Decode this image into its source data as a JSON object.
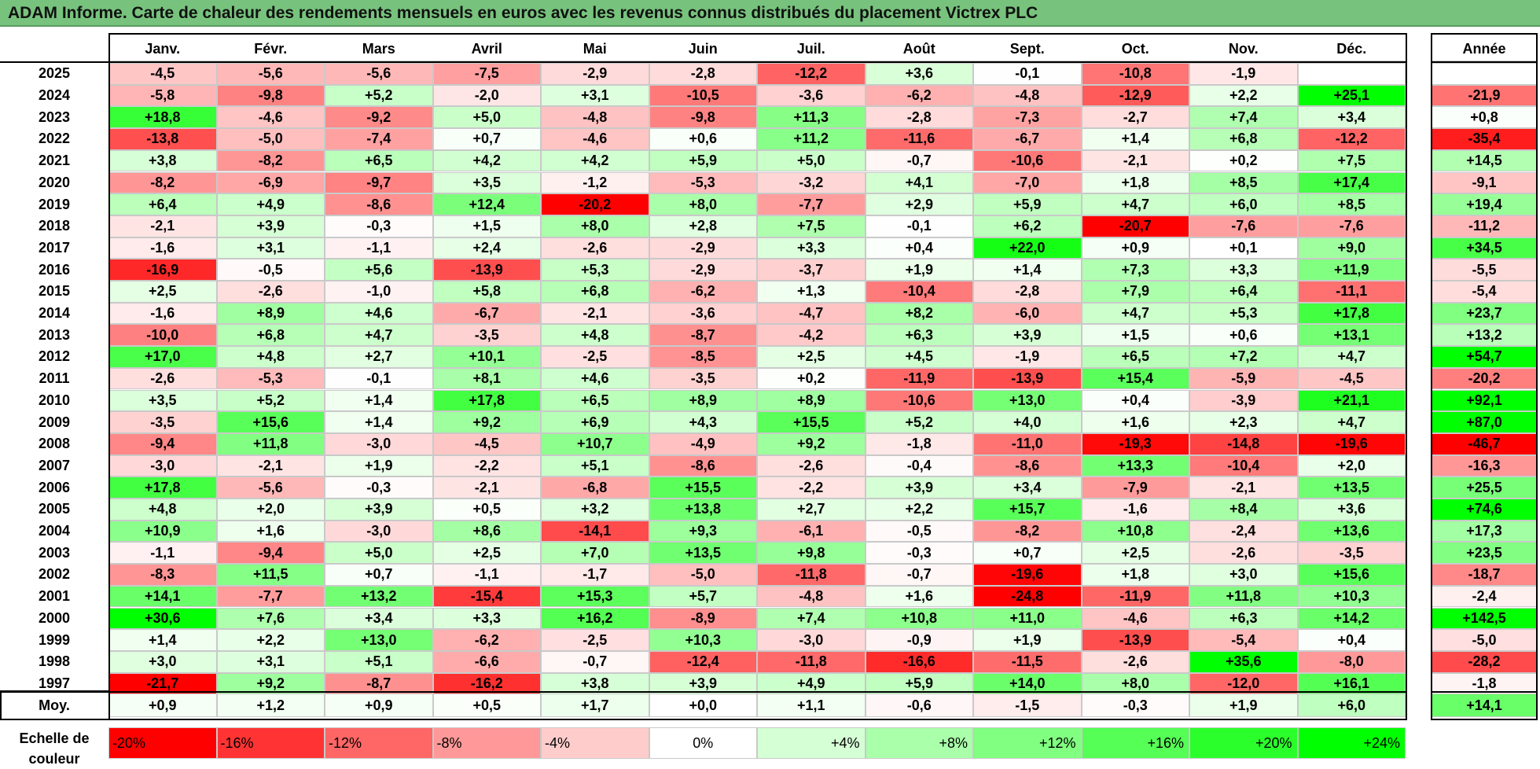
{
  "title": "ADAM Informe. Carte de chaleur des rendements mensuels en euros avec les revenus connus distribués du placement Victrex PLC",
  "chart_data": {
    "type": "heatmap",
    "title": "ADAM Informe. Carte de chaleur des rendements mensuels en euros avec les revenus connus distribués du placement Victrex PLC",
    "columns": [
      "Janv.",
      "Févr.",
      "Mars",
      "Avril",
      "Mai",
      "Juin",
      "Juil.",
      "Août",
      "Sept.",
      "Oct.",
      "Nov.",
      "Déc."
    ],
    "annual_header": "Année",
    "rows": [
      {
        "year": "2025",
        "values": [
          "-4,5",
          "-5,6",
          "-5,6",
          "-7,5",
          "-2,9",
          "-2,8",
          "-12,2",
          "+3,6",
          "-0,1",
          "-10,8",
          "-1,9",
          ""
        ],
        "annual": ""
      },
      {
        "year": "2024",
        "values": [
          "-5,8",
          "-9,8",
          "+5,2",
          "-2,0",
          "+3,1",
          "-10,5",
          "-3,6",
          "-6,2",
          "-4,8",
          "-12,9",
          "+2,2",
          "+25,1"
        ],
        "annual": "-21,9"
      },
      {
        "year": "2023",
        "values": [
          "+18,8",
          "-4,6",
          "-9,2",
          "+5,0",
          "-4,8",
          "-9,8",
          "+11,3",
          "-2,8",
          "-7,3",
          "-2,7",
          "+7,4",
          "+3,4"
        ],
        "annual": "+0,8"
      },
      {
        "year": "2022",
        "values": [
          "-13,8",
          "-5,0",
          "-7,4",
          "+0,7",
          "-4,6",
          "+0,6",
          "+11,2",
          "-11,6",
          "-6,7",
          "+1,4",
          "+6,8",
          "-12,2"
        ],
        "annual": "-35,4"
      },
      {
        "year": "2021",
        "values": [
          "+3,8",
          "-8,2",
          "+6,5",
          "+4,2",
          "+4,2",
          "+5,9",
          "+5,0",
          "-0,7",
          "-10,6",
          "-2,1",
          "+0,2",
          "+7,5"
        ],
        "annual": "+14,5"
      },
      {
        "year": "2020",
        "values": [
          "-8,2",
          "-6,9",
          "-9,7",
          "+3,5",
          "-1,2",
          "-5,3",
          "-3,2",
          "+4,1",
          "-7,0",
          "+1,8",
          "+8,5",
          "+17,4"
        ],
        "annual": "-9,1"
      },
      {
        "year": "2019",
        "values": [
          "+6,4",
          "+4,9",
          "-8,6",
          "+12,4",
          "-20,2",
          "+8,0",
          "-7,7",
          "+2,9",
          "+5,9",
          "+4,7",
          "+6,0",
          "+8,5"
        ],
        "annual": "+19,4"
      },
      {
        "year": "2018",
        "values": [
          "-2,1",
          "+3,9",
          "-0,3",
          "+1,5",
          "+8,0",
          "+2,8",
          "+7,5",
          "-0,1",
          "+6,2",
          "-20,7",
          "-7,6",
          "-7,6"
        ],
        "annual": "-11,2"
      },
      {
        "year": "2017",
        "values": [
          "-1,6",
          "+3,1",
          "-1,1",
          "+2,4",
          "-2,6",
          "-2,9",
          "+3,3",
          "+0,4",
          "+22,0",
          "+0,9",
          "+0,1",
          "+9,0"
        ],
        "annual": "+34,5"
      },
      {
        "year": "2016",
        "values": [
          "-16,9",
          "-0,5",
          "+5,6",
          "-13,9",
          "+5,3",
          "-2,9",
          "-3,7",
          "+1,9",
          "+1,4",
          "+7,3",
          "+3,3",
          "+11,9"
        ],
        "annual": "-5,5"
      },
      {
        "year": "2015",
        "values": [
          "+2,5",
          "-2,6",
          "-1,0",
          "+5,8",
          "+6,8",
          "-6,2",
          "+1,3",
          "-10,4",
          "-2,8",
          "+7,9",
          "+6,4",
          "-11,1"
        ],
        "annual": "-5,4"
      },
      {
        "year": "2014",
        "values": [
          "-1,6",
          "+8,9",
          "+4,6",
          "-6,7",
          "-2,1",
          "-3,6",
          "-4,7",
          "+8,2",
          "-6,0",
          "+4,7",
          "+5,3",
          "+17,8"
        ],
        "annual": "+23,7"
      },
      {
        "year": "2013",
        "values": [
          "-10,0",
          "+6,8",
          "+4,7",
          "-3,5",
          "+4,8",
          "-8,7",
          "-4,2",
          "+6,3",
          "+3,9",
          "+1,5",
          "+0,6",
          "+13,1"
        ],
        "annual": "+13,2"
      },
      {
        "year": "2012",
        "values": [
          "+17,0",
          "+4,8",
          "+2,7",
          "+10,1",
          "-2,5",
          "-8,5",
          "+2,5",
          "+4,5",
          "-1,9",
          "+6,5",
          "+7,2",
          "+4,7"
        ],
        "annual": "+54,7"
      },
      {
        "year": "2011",
        "values": [
          "-2,6",
          "-5,3",
          "-0,1",
          "+8,1",
          "+4,6",
          "-3,5",
          "+0,2",
          "-11,9",
          "-13,9",
          "+15,4",
          "-5,9",
          "-4,5"
        ],
        "annual": "-20,2"
      },
      {
        "year": "2010",
        "values": [
          "+3,5",
          "+5,2",
          "+1,4",
          "+17,8",
          "+6,5",
          "+8,9",
          "+8,9",
          "-10,6",
          "+13,0",
          "+0,4",
          "-3,9",
          "+21,1"
        ],
        "annual": "+92,1"
      },
      {
        "year": "2009",
        "values": [
          "-3,5",
          "+15,6",
          "+1,4",
          "+9,2",
          "+6,9",
          "+4,3",
          "+15,5",
          "+5,2",
          "+4,0",
          "+1,6",
          "+2,3",
          "+4,7"
        ],
        "annual": "+87,0"
      },
      {
        "year": "2008",
        "values": [
          "-9,4",
          "+11,8",
          "-3,0",
          "-4,5",
          "+10,7",
          "-4,9",
          "+9,2",
          "-1,8",
          "-11,0",
          "-19,3",
          "-14,8",
          "-19,6"
        ],
        "annual": "-46,7"
      },
      {
        "year": "2007",
        "values": [
          "-3,0",
          "-2,1",
          "+1,9",
          "-2,2",
          "+5,1",
          "-8,6",
          "-2,6",
          "-0,4",
          "-8,6",
          "+13,3",
          "-10,4",
          "+2,0"
        ],
        "annual": "-16,3"
      },
      {
        "year": "2006",
        "values": [
          "+17,8",
          "-5,6",
          "-0,3",
          "-2,1",
          "-6,8",
          "+15,5",
          "-2,2",
          "+3,9",
          "+3,4",
          "-7,9",
          "-2,1",
          "+13,5"
        ],
        "annual": "+25,5"
      },
      {
        "year": "2005",
        "values": [
          "+4,8",
          "+2,0",
          "+3,9",
          "+0,5",
          "+3,2",
          "+13,8",
          "+2,7",
          "+2,2",
          "+15,7",
          "-1,6",
          "+8,4",
          "+3,6"
        ],
        "annual": "+74,6"
      },
      {
        "year": "2004",
        "values": [
          "+10,9",
          "+1,6",
          "-3,0",
          "+8,6",
          "-14,1",
          "+9,3",
          "-6,1",
          "-0,5",
          "-8,2",
          "+10,8",
          "-2,4",
          "+13,6"
        ],
        "annual": "+17,3"
      },
      {
        "year": "2003",
        "values": [
          "-1,1",
          "-9,4",
          "+5,0",
          "+2,5",
          "+7,0",
          "+13,5",
          "+9,8",
          "-0,3",
          "+0,7",
          "+2,5",
          "-2,6",
          "-3,5"
        ],
        "annual": "+23,5"
      },
      {
        "year": "2002",
        "values": [
          "-8,3",
          "+11,5",
          "+0,7",
          "-1,1",
          "-1,7",
          "-5,0",
          "-11,8",
          "-0,7",
          "-19,6",
          "+1,8",
          "+3,0",
          "+15,6"
        ],
        "annual": "-18,7"
      },
      {
        "year": "2001",
        "values": [
          "+14,1",
          "-7,7",
          "+13,2",
          "-15,4",
          "+15,3",
          "+5,7",
          "-4,8",
          "+1,6",
          "-24,8",
          "-11,9",
          "+11,8",
          "+10,3"
        ],
        "annual": "-2,4"
      },
      {
        "year": "2000",
        "values": [
          "+30,6",
          "+7,6",
          "+3,4",
          "+3,3",
          "+16,2",
          "-8,9",
          "+7,4",
          "+10,8",
          "+11,0",
          "-4,6",
          "+6,3",
          "+14,2"
        ],
        "annual": "+142,5"
      },
      {
        "year": "1999",
        "values": [
          "+1,4",
          "+2,2",
          "+13,0",
          "-6,2",
          "-2,5",
          "+10,3",
          "-3,0",
          "-0,9",
          "+1,9",
          "-13,9",
          "-5,4",
          "+0,4"
        ],
        "annual": "-5,0"
      },
      {
        "year": "1998",
        "values": [
          "+3,0",
          "+3,1",
          "+5,1",
          "-6,6",
          "-0,7",
          "-12,4",
          "-11,8",
          "-16,6",
          "-11,5",
          "-2,6",
          "+35,6",
          "-8,0"
        ],
        "annual": "-28,2"
      },
      {
        "year": "1997",
        "values": [
          "-21,7",
          "+9,2",
          "-8,7",
          "-16,2",
          "+3,8",
          "+3,9",
          "+4,9",
          "+5,9",
          "+14,0",
          "+8,0",
          "-12,0",
          "+16,1"
        ],
        "annual": "-1,8"
      }
    ],
    "average": {
      "label": "Moy.",
      "values": [
        "+0,9",
        "+1,2",
        "+0,9",
        "+0,5",
        "+1,7",
        "+0,0",
        "+1,1",
        "-0,6",
        "-1,5",
        "-0,3",
        "+1,9",
        "+6,0"
      ],
      "annual": "+14,1"
    },
    "scale": {
      "label": "Echelle de couleur",
      "labels": [
        "-20%",
        "-16%",
        "-12%",
        "-8%",
        "-4%",
        "0%",
        "+4%",
        "+8%",
        "+12%",
        "+16%",
        "+20%",
        "+24%"
      ],
      "values": [
        -20,
        -16,
        -12,
        -8,
        -4,
        0,
        4,
        8,
        12,
        16,
        20,
        24
      ]
    },
    "colors": {
      "negative_max": "#ff0000",
      "neutral": "#ffffff",
      "positive_max": "#00ff00",
      "title_bar": "#77c37d"
    }
  }
}
